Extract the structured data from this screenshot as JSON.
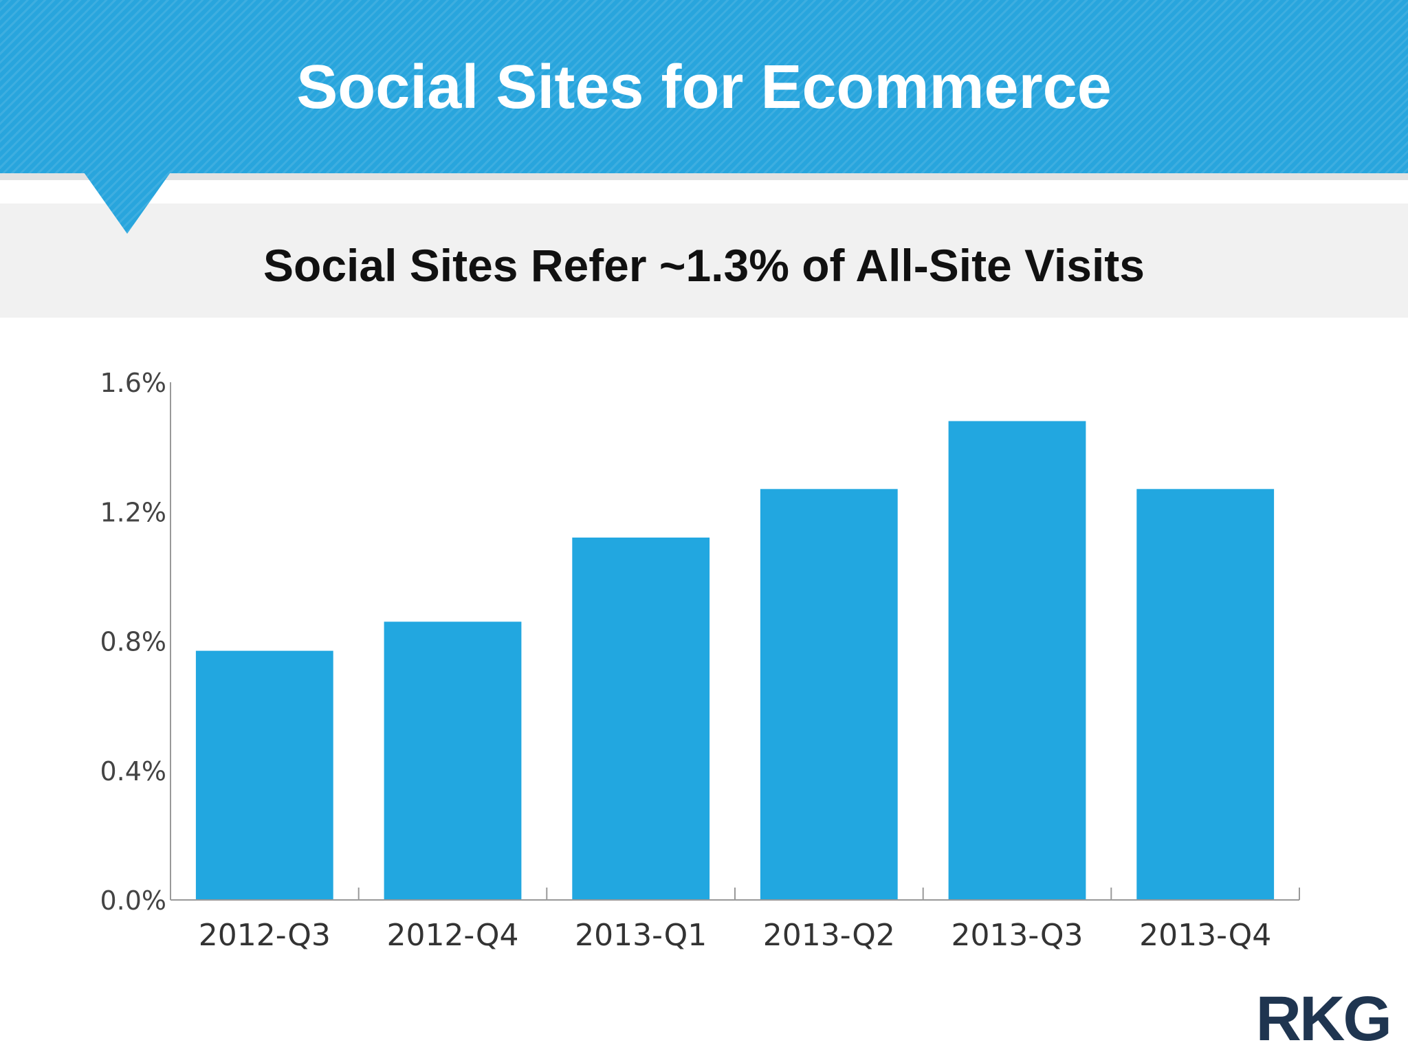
{
  "slide": {
    "title": "Social Sites for Ecommerce",
    "logo_text": "RKG"
  },
  "colors": {
    "banner": "#28a5dd",
    "bar": "#22a7e0",
    "axis": "#999999",
    "logo": "#1f3550"
  },
  "chart_data": {
    "type": "bar",
    "title": "Social Sites Refer ~1.3% of All-Site Visits",
    "categories": [
      "2012-Q3",
      "2012-Q4",
      "2013-Q1",
      "2013-Q2",
      "2013-Q3",
      "2013-Q4"
    ],
    "values": [
      0.77,
      0.86,
      1.12,
      1.27,
      1.48,
      1.27
    ],
    "value_unit": "%",
    "ylim": [
      0,
      1.6
    ],
    "yticks": [
      0.0,
      0.4,
      0.8,
      1.2,
      1.6
    ],
    "ytick_labels": [
      "0.0%",
      "0.4%",
      "0.8%",
      "1.2%",
      "1.6%"
    ],
    "xlabel": "",
    "ylabel": "",
    "grid": false,
    "legend": "none"
  }
}
